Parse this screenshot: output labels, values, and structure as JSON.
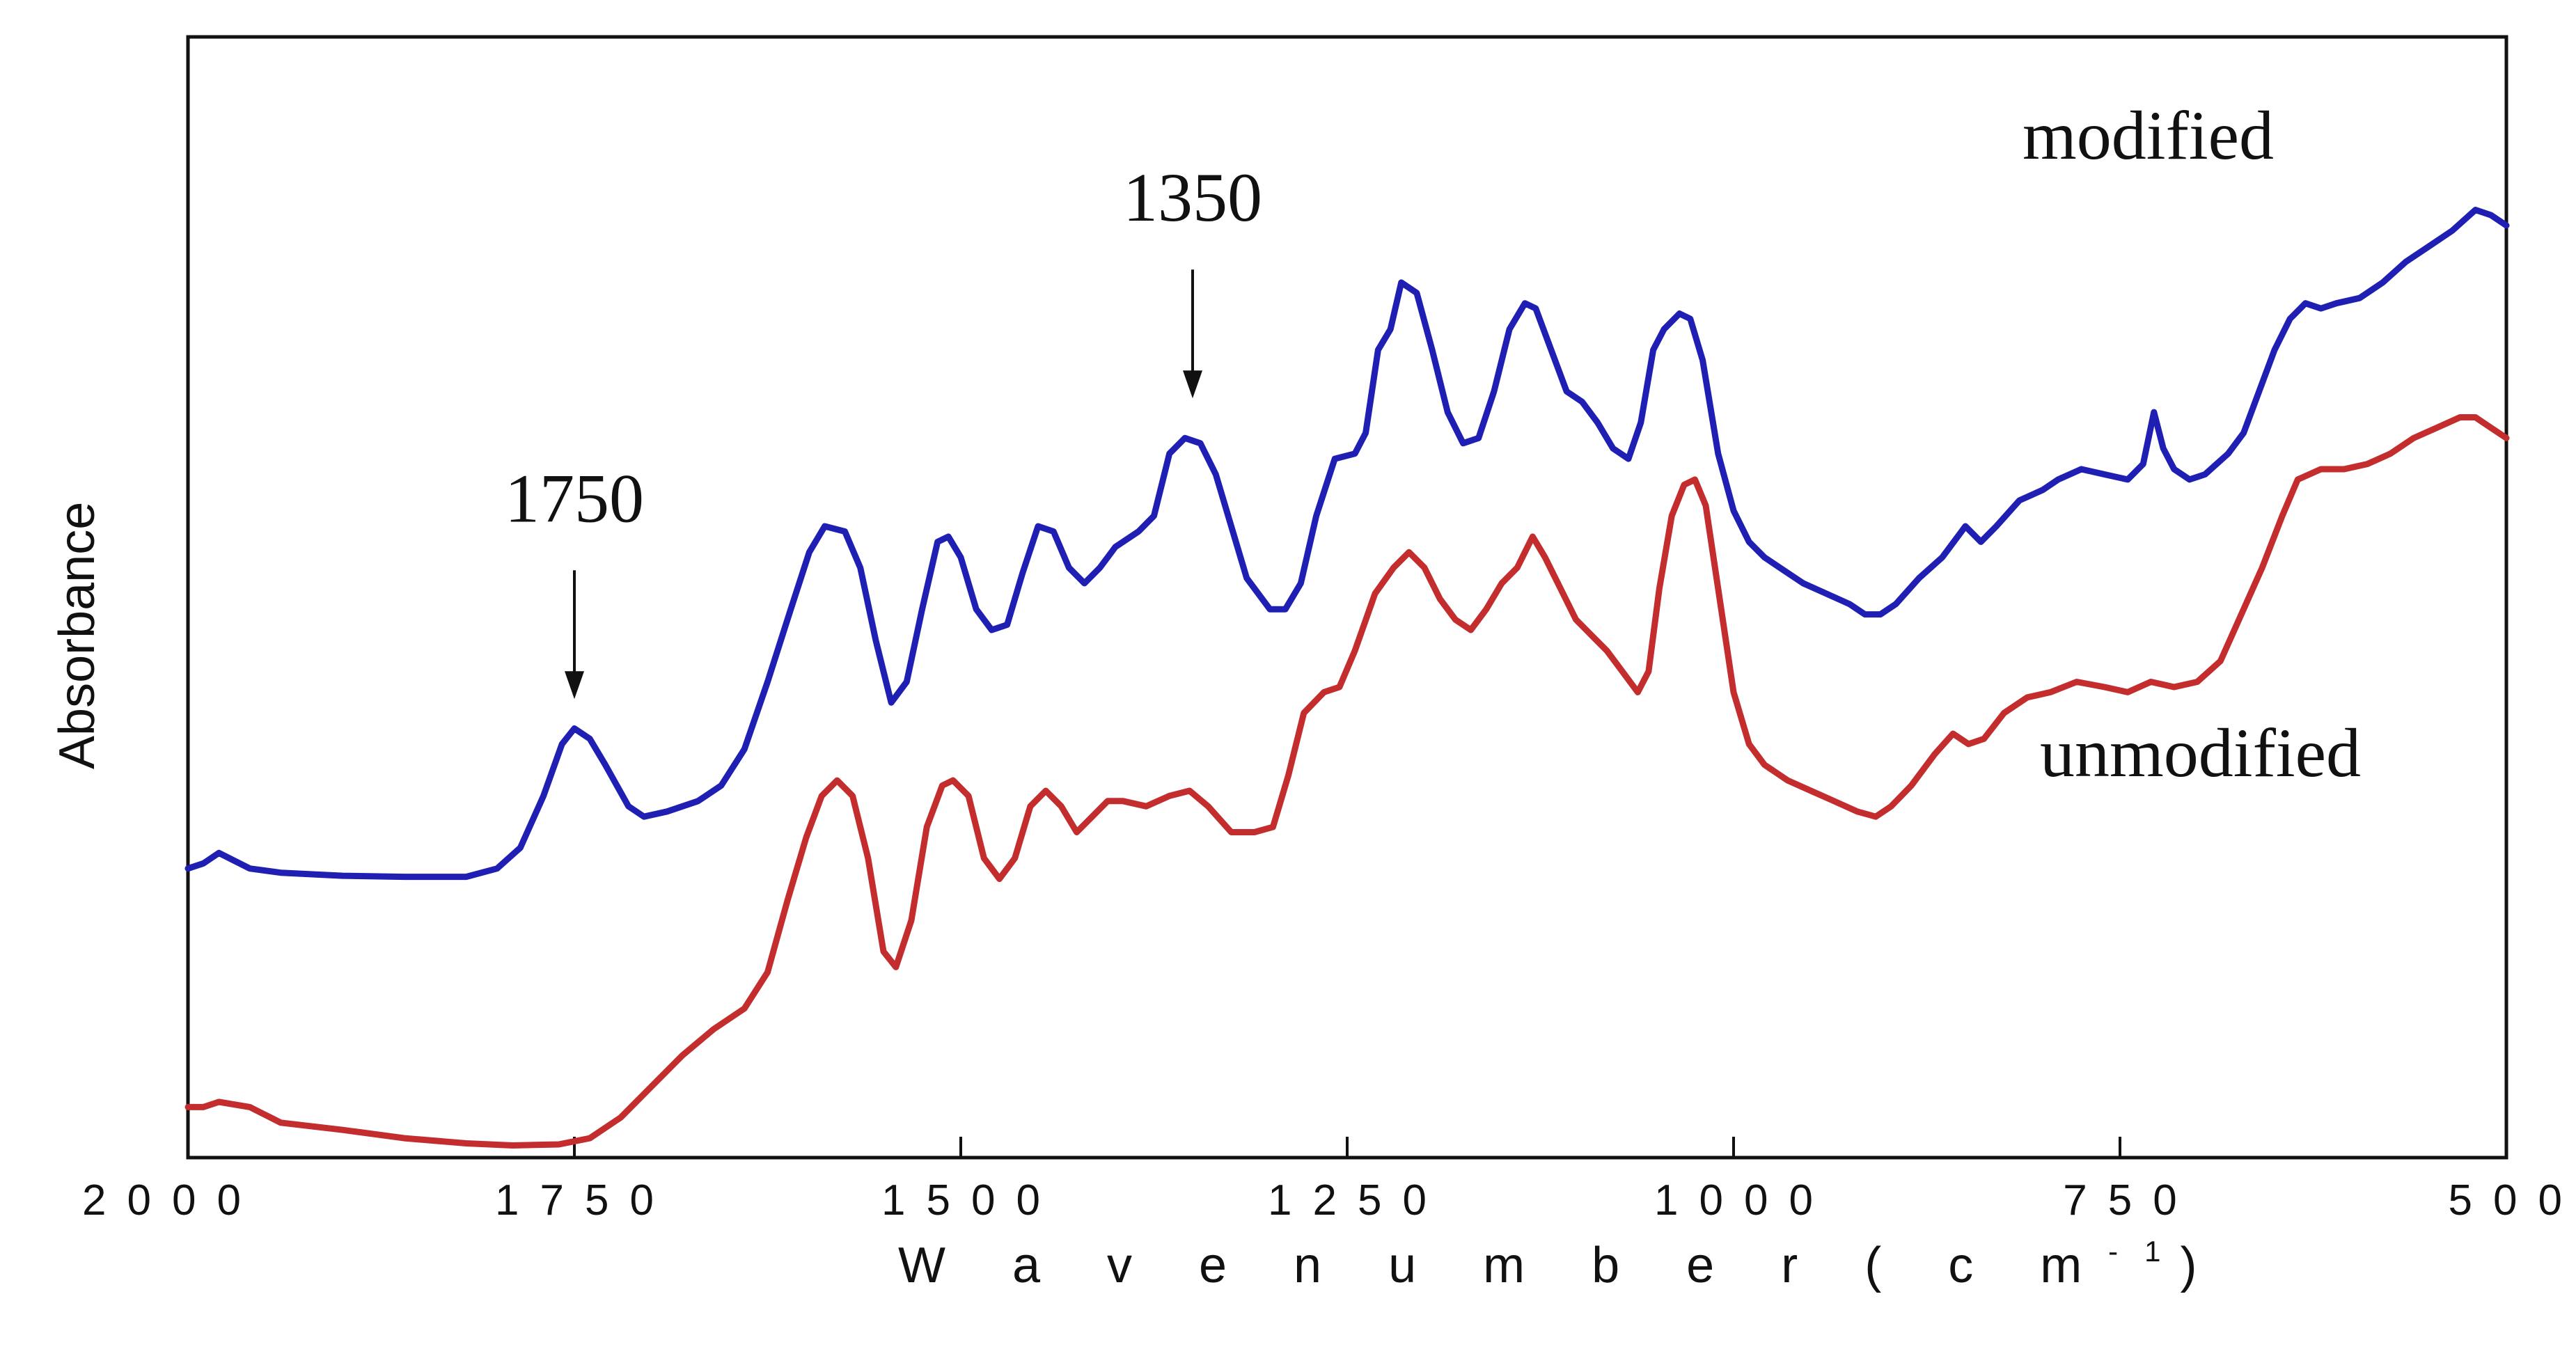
{
  "chart_data": {
    "type": "line",
    "title": "",
    "xlabel_parts": {
      "text": "W a v e n u m b e r  ( c m",
      "sup": "-1",
      "close": ")"
    },
    "ylabel": "Absorbance",
    "xlim": [
      2000,
      500
    ],
    "x_reversed": true,
    "ylim": [
      0,
      1.0
    ],
    "y_ticks_shown": false,
    "grid": false,
    "x_ticks": [
      2000,
      1750,
      1500,
      1250,
      1000,
      750,
      500
    ],
    "x_tick_labels": [
      "2000",
      "1750",
      "1500",
      "1250",
      "1000",
      "750",
      "500"
    ],
    "series": [
      {
        "name": "modified",
        "color": "#1f1fb4",
        "points": [
          [
            2000,
            0.27
          ],
          [
            1990,
            0.275
          ],
          [
            1980,
            0.285
          ],
          [
            1960,
            0.27
          ],
          [
            1940,
            0.266
          ],
          [
            1900,
            0.263
          ],
          [
            1860,
            0.262
          ],
          [
            1820,
            0.262
          ],
          [
            1800,
            0.27
          ],
          [
            1785,
            0.29
          ],
          [
            1770,
            0.34
          ],
          [
            1758,
            0.39
          ],
          [
            1750,
            0.405
          ],
          [
            1740,
            0.395
          ],
          [
            1730,
            0.37
          ],
          [
            1715,
            0.33
          ],
          [
            1705,
            0.32
          ],
          [
            1690,
            0.325
          ],
          [
            1670,
            0.335
          ],
          [
            1655,
            0.35
          ],
          [
            1640,
            0.385
          ],
          [
            1625,
            0.45
          ],
          [
            1610,
            0.52
          ],
          [
            1598,
            0.575
          ],
          [
            1588,
            0.6
          ],
          [
            1575,
            0.595
          ],
          [
            1565,
            0.56
          ],
          [
            1555,
            0.49
          ],
          [
            1545,
            0.43
          ],
          [
            1535,
            0.45
          ],
          [
            1525,
            0.52
          ],
          [
            1515,
            0.585
          ],
          [
            1508,
            0.59
          ],
          [
            1500,
            0.57
          ],
          [
            1490,
            0.52
          ],
          [
            1480,
            0.5
          ],
          [
            1470,
            0.505
          ],
          [
            1460,
            0.555
          ],
          [
            1450,
            0.6
          ],
          [
            1440,
            0.595
          ],
          [
            1430,
            0.56
          ],
          [
            1420,
            0.545
          ],
          [
            1410,
            0.56
          ],
          [
            1400,
            0.58
          ],
          [
            1385,
            0.595
          ],
          [
            1375,
            0.61
          ],
          [
            1365,
            0.67
          ],
          [
            1355,
            0.685
          ],
          [
            1345,
            0.68
          ],
          [
            1335,
            0.65
          ],
          [
            1325,
            0.6
          ],
          [
            1315,
            0.55
          ],
          [
            1300,
            0.52
          ],
          [
            1290,
            0.52
          ],
          [
            1280,
            0.545
          ],
          [
            1270,
            0.61
          ],
          [
            1258,
            0.665
          ],
          [
            1245,
            0.67
          ],
          [
            1238,
            0.69
          ],
          [
            1230,
            0.77
          ],
          [
            1222,
            0.79
          ],
          [
            1215,
            0.835
          ],
          [
            1205,
            0.825
          ],
          [
            1195,
            0.77
          ],
          [
            1185,
            0.71
          ],
          [
            1175,
            0.68
          ],
          [
            1165,
            0.685
          ],
          [
            1155,
            0.73
          ],
          [
            1145,
            0.79
          ],
          [
            1135,
            0.815
          ],
          [
            1128,
            0.81
          ],
          [
            1118,
            0.77
          ],
          [
            1108,
            0.73
          ],
          [
            1098,
            0.72
          ],
          [
            1088,
            0.7
          ],
          [
            1078,
            0.675
          ],
          [
            1068,
            0.665
          ],
          [
            1060,
            0.7
          ],
          [
            1052,
            0.77
          ],
          [
            1045,
            0.79
          ],
          [
            1035,
            0.805
          ],
          [
            1028,
            0.8
          ],
          [
            1020,
            0.76
          ],
          [
            1010,
            0.67
          ],
          [
            1000,
            0.615
          ],
          [
            990,
            0.585
          ],
          [
            980,
            0.57
          ],
          [
            970,
            0.56
          ],
          [
            955,
            0.545
          ],
          [
            940,
            0.535
          ],
          [
            925,
            0.525
          ],
          [
            915,
            0.515
          ],
          [
            905,
            0.515
          ],
          [
            895,
            0.525
          ],
          [
            880,
            0.55
          ],
          [
            865,
            0.57
          ],
          [
            850,
            0.6
          ],
          [
            840,
            0.585
          ],
          [
            830,
            0.6
          ],
          [
            815,
            0.625
          ],
          [
            800,
            0.635
          ],
          [
            790,
            0.645
          ],
          [
            775,
            0.655
          ],
          [
            760,
            0.65
          ],
          [
            745,
            0.645
          ],
          [
            735,
            0.66
          ],
          [
            728,
            0.71
          ],
          [
            722,
            0.675
          ],
          [
            715,
            0.655
          ],
          [
            705,
            0.645
          ],
          [
            695,
            0.65
          ],
          [
            680,
            0.67
          ],
          [
            670,
            0.69
          ],
          [
            660,
            0.73
          ],
          [
            650,
            0.77
          ],
          [
            640,
            0.8
          ],
          [
            630,
            0.815
          ],
          [
            620,
            0.81
          ],
          [
            610,
            0.815
          ],
          [
            595,
            0.82
          ],
          [
            580,
            0.835
          ],
          [
            565,
            0.855
          ],
          [
            550,
            0.87
          ],
          [
            535,
            0.885
          ],
          [
            520,
            0.905
          ],
          [
            510,
            0.9
          ],
          [
            500,
            0.89
          ]
        ]
      },
      {
        "name": "unmodified",
        "color": "#c42d2d",
        "points": [
          [
            2000,
            0.04
          ],
          [
            1990,
            0.04
          ],
          [
            1980,
            0.045
          ],
          [
            1960,
            0.04
          ],
          [
            1940,
            0.025
          ],
          [
            1900,
            0.018
          ],
          [
            1860,
            0.01
          ],
          [
            1820,
            0.005
          ],
          [
            1790,
            0.003
          ],
          [
            1760,
            0.004
          ],
          [
            1740,
            0.01
          ],
          [
            1720,
            0.03
          ],
          [
            1700,
            0.06
          ],
          [
            1680,
            0.09
          ],
          [
            1660,
            0.115
          ],
          [
            1640,
            0.135
          ],
          [
            1625,
            0.17
          ],
          [
            1612,
            0.24
          ],
          [
            1600,
            0.3
          ],
          [
            1590,
            0.34
          ],
          [
            1580,
            0.355
          ],
          [
            1570,
            0.34
          ],
          [
            1560,
            0.28
          ],
          [
            1550,
            0.19
          ],
          [
            1542,
            0.175
          ],
          [
            1532,
            0.22
          ],
          [
            1522,
            0.31
          ],
          [
            1512,
            0.35
          ],
          [
            1505,
            0.355
          ],
          [
            1495,
            0.34
          ],
          [
            1485,
            0.28
          ],
          [
            1475,
            0.26
          ],
          [
            1465,
            0.28
          ],
          [
            1455,
            0.33
          ],
          [
            1445,
            0.345
          ],
          [
            1435,
            0.33
          ],
          [
            1425,
            0.305
          ],
          [
            1415,
            0.32
          ],
          [
            1405,
            0.335
          ],
          [
            1395,
            0.335
          ],
          [
            1380,
            0.33
          ],
          [
            1365,
            0.34
          ],
          [
            1352,
            0.345
          ],
          [
            1340,
            0.33
          ],
          [
            1325,
            0.305
          ],
          [
            1310,
            0.305
          ],
          [
            1298,
            0.31
          ],
          [
            1288,
            0.36
          ],
          [
            1278,
            0.42
          ],
          [
            1265,
            0.44
          ],
          [
            1255,
            0.445
          ],
          [
            1245,
            0.48
          ],
          [
            1232,
            0.535
          ],
          [
            1220,
            0.56
          ],
          [
            1210,
            0.575
          ],
          [
            1200,
            0.56
          ],
          [
            1190,
            0.53
          ],
          [
            1180,
            0.51
          ],
          [
            1170,
            0.5
          ],
          [
            1160,
            0.52
          ],
          [
            1150,
            0.545
          ],
          [
            1140,
            0.56
          ],
          [
            1130,
            0.59
          ],
          [
            1122,
            0.57
          ],
          [
            1112,
            0.54
          ],
          [
            1102,
            0.51
          ],
          [
            1092,
            0.495
          ],
          [
            1082,
            0.48
          ],
          [
            1072,
            0.46
          ],
          [
            1062,
            0.44
          ],
          [
            1055,
            0.46
          ],
          [
            1048,
            0.54
          ],
          [
            1040,
            0.61
          ],
          [
            1032,
            0.64
          ],
          [
            1025,
            0.645
          ],
          [
            1018,
            0.62
          ],
          [
            1010,
            0.54
          ],
          [
            1000,
            0.44
          ],
          [
            990,
            0.39
          ],
          [
            980,
            0.37
          ],
          [
            965,
            0.355
          ],
          [
            950,
            0.345
          ],
          [
            935,
            0.335
          ],
          [
            920,
            0.325
          ],
          [
            908,
            0.32
          ],
          [
            898,
            0.33
          ],
          [
            885,
            0.35
          ],
          [
            870,
            0.38
          ],
          [
            858,
            0.4
          ],
          [
            848,
            0.39
          ],
          [
            838,
            0.395
          ],
          [
            825,
            0.42
          ],
          [
            810,
            0.435
          ],
          [
            795,
            0.44
          ],
          [
            778,
            0.45
          ],
          [
            760,
            0.445
          ],
          [
            745,
            0.44
          ],
          [
            730,
            0.45
          ],
          [
            715,
            0.445
          ],
          [
            700,
            0.45
          ],
          [
            685,
            0.47
          ],
          [
            670,
            0.52
          ],
          [
            658,
            0.56
          ],
          [
            645,
            0.61
          ],
          [
            635,
            0.645
          ],
          [
            620,
            0.655
          ],
          [
            605,
            0.655
          ],
          [
            590,
            0.66
          ],
          [
            575,
            0.67
          ],
          [
            560,
            0.685
          ],
          [
            545,
            0.695
          ],
          [
            530,
            0.705
          ],
          [
            520,
            0.705
          ],
          [
            510,
            0.695
          ],
          [
            500,
            0.685
          ]
        ]
      }
    ],
    "annotations": [
      {
        "text": "1750",
        "x": 1750,
        "arrow_y": 0.43
      },
      {
        "text": "1350",
        "x": 1350,
        "arrow_y": 0.72
      }
    ],
    "legend": "inline labels at right of each curve"
  }
}
